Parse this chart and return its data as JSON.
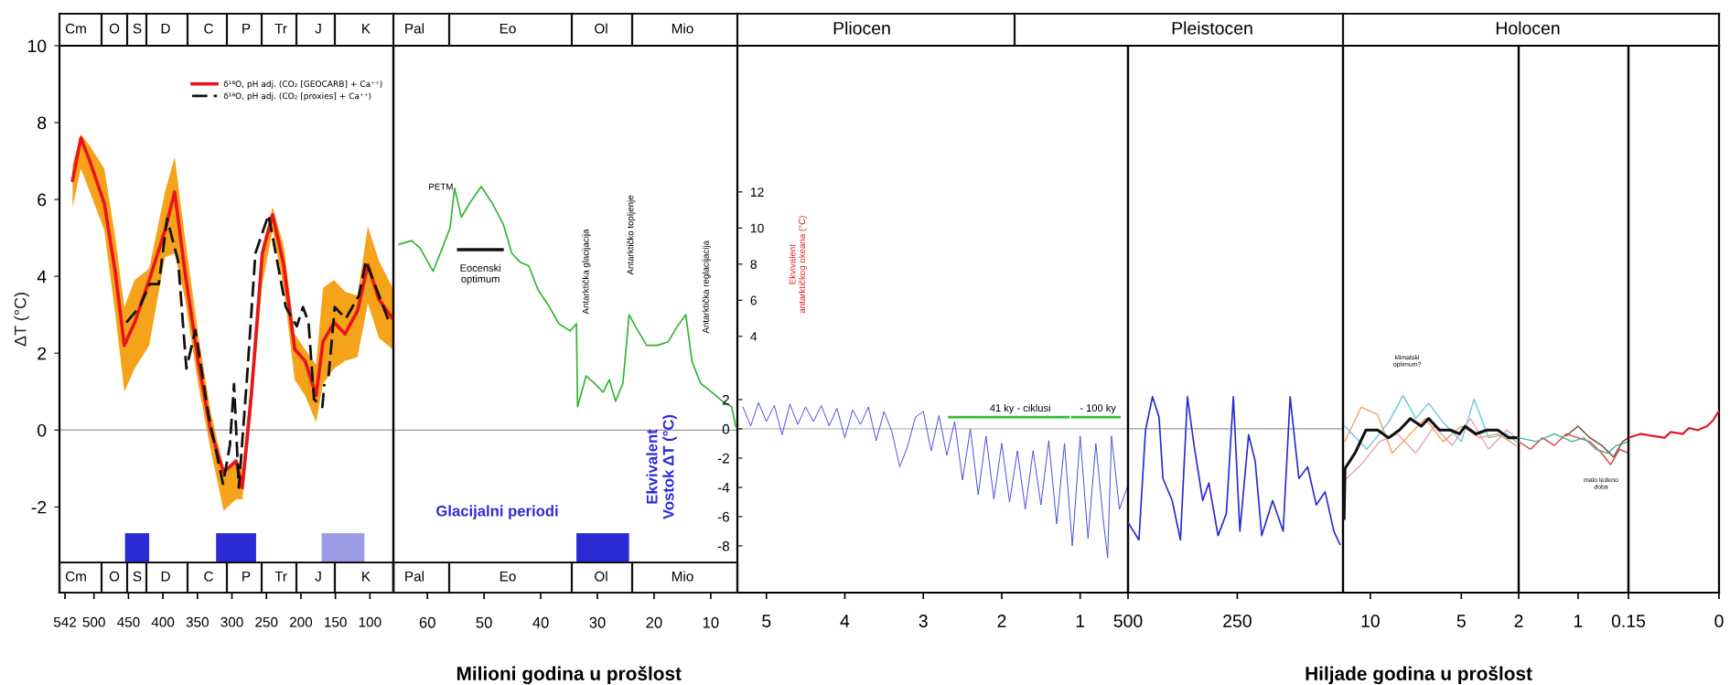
{
  "chart_data": [
    {
      "type": "line",
      "ylabel": "ΔT (°C)",
      "xlim": [
        550,
        66
      ],
      "xticks": [
        542,
        500,
        450,
        400,
        350,
        300,
        250,
        200,
        150,
        100
      ],
      "ylim": [
        -4.23,
        10
      ],
      "yticks": [
        -2,
        0,
        2,
        4,
        6,
        8,
        10
      ],
      "legend": "top right",
      "series": [
        {
          "name": "δ¹⁸O, pH adj. (CO₂ [GEOCARB] + Ca⁺⁺)",
          "color": "#e8151b",
          "x": [
            531,
            519,
            506,
            485,
            469,
            456,
            441,
            420,
            397,
            383,
            368,
            349,
            331,
            312,
            294,
            285,
            272,
            256,
            241,
            225,
            209,
            194,
            178,
            168,
            152,
            136,
            118,
            103,
            87,
            67
          ],
          "values": [
            6.5,
            7.6,
            7.0,
            5.9,
            4.1,
            2.2,
            2.8,
            3.9,
            5.2,
            6.2,
            4.1,
            1.8,
            0.0,
            -1.1,
            -0.8,
            -1.5,
            0.9,
            4.6,
            5.6,
            4.3,
            2.1,
            1.8,
            0.9,
            2.3,
            2.8,
            2.5,
            3.1,
            4.3,
            3.4,
            2.9
          ],
          "lower": [
            5.8,
            6.8,
            6.2,
            5.2,
            3.0,
            1.0,
            1.6,
            2.2,
            4.5,
            4.6,
            3.4,
            1.2,
            -0.5,
            -2.1,
            -1.8,
            -1.8,
            0.4,
            3.8,
            5.2,
            3.7,
            1.3,
            0.9,
            0.2,
            1.2,
            1.6,
            1.8,
            1.9,
            3.3,
            2.4,
            2.1
          ],
          "upper": [
            6.9,
            7.7,
            7.4,
            6.8,
            5.0,
            3.2,
            3.9,
            4.2,
            6.2,
            7.1,
            5.0,
            2.5,
            0.5,
            -1.0,
            -0.8,
            -1.0,
            1.3,
            4.8,
            5.8,
            4.8,
            2.5,
            2.1,
            1.7,
            3.7,
            3.9,
            3.6,
            3.5,
            5.3,
            4.4,
            3.7
          ]
        },
        {
          "name": "δ¹⁸O, pH adj. (CO₂ [proxies] + Ca⁺⁺)",
          "color": "#111111",
          "line_style": "dashed",
          "x": [
            453,
            434,
            419,
            406,
            394,
            378,
            366,
            353,
            334,
            313,
            303,
            297,
            290,
            278,
            266,
            247,
            222,
            206,
            197,
            189,
            181,
            169,
            166,
            163,
            160,
            151,
            135,
            116,
            106,
            91,
            72
          ],
          "values": [
            2.8,
            3.2,
            3.8,
            3.8,
            5.5,
            4.4,
            1.6,
            2.6,
            0.4,
            -1.4,
            -0.4,
            1.2,
            -1.5,
            1.4,
            4.6,
            5.6,
            3.2,
            2.7,
            3.2,
            2.8,
            0.8,
            0.6,
            1.2,
            null,
            1.4,
            3.2,
            2.9,
            3.5,
            4.4,
            3.7,
            2.8
          ]
        }
      ],
      "annotations": [
        "Cm",
        "O",
        "S",
        "D",
        "C",
        "P",
        "Tr",
        "J",
        "K"
      ],
      "bands": [
        {
          "axis": "x",
          "from": 455,
          "to": 420,
          "color": "#2b2bd6"
        },
        {
          "axis": "x",
          "from": 323,
          "to": 265,
          "color": "#2b2bd6"
        },
        {
          "axis": "x",
          "from": 170,
          "to": 108,
          "color": "#9c9ce6"
        }
      ],
      "ref_lines": [
        {
          "axis": "y",
          "value": 0,
          "color": "#999999"
        }
      ]
    },
    {
      "type": "line",
      "xlabel": "Milioni godina u prošlost",
      "ylabel": "Ekvivalent\nantarktičkog okeana (°C)",
      "xlim": [
        66,
        5.3
      ],
      "xticks": [
        60,
        50,
        40,
        30,
        20,
        10
      ],
      "ylim": [
        -10.2,
        20.1
      ],
      "yticks": [
        4,
        6,
        8,
        10,
        12
      ],
      "series": [
        {
          "color": "#2fb52f",
          "x": [
            65.0,
            62.8,
            61.3,
            59.0,
            57.1,
            56.0,
            55.2,
            54.0,
            52.5,
            50.5,
            48.6,
            46.6,
            45.1,
            43.6,
            42.1,
            40.5,
            38.6,
            36.8,
            34.8,
            33.7,
            33.5,
            32.0,
            30.5,
            29.0,
            27.9,
            26.8,
            25.5,
            24.4,
            23.2,
            21.3,
            19.4,
            17.5,
            16.0,
            14.4,
            13.3,
            11.8,
            9.8,
            7.9,
            6.3,
            5.6
          ],
          "values": [
            9.1,
            9.3,
            8.9,
            7.6,
            9.1,
            10.0,
            12.2,
            10.6,
            11.4,
            12.3,
            11.4,
            10.2,
            8.6,
            8.1,
            7.9,
            6.6,
            5.7,
            4.7,
            4.3,
            4.7,
            0.1,
            1.8,
            1.4,
            0.9,
            1.6,
            0.4,
            1.4,
            5.2,
            4.5,
            3.5,
            3.5,
            3.7,
            4.5,
            5.2,
            2.6,
            1.4,
            0.9,
            0.4,
            0.1,
            -1.0
          ]
        },
        {
          "color": "#111111",
          "x": [
            54.5,
            46.8
          ],
          "values": [
            8.8,
            8.8
          ]
        }
      ],
      "annotations": [
        "Pal",
        "Eo",
        "Ol",
        "Mio",
        "PETM",
        "Eocenski\noptimum",
        "Antarktička glacijacija",
        "Antarktičko topljenje",
        "Antarktička reglacijacija"
      ],
      "bands": [
        {
          "axis": "x",
          "from": 33.7,
          "to": 24.4,
          "label": "Glacijalni periodi",
          "color": "#2b2bd6"
        }
      ],
      "ref_lines": [
        {
          "axis": "y",
          "value": -1.2,
          "color": "#999999"
        }
      ]
    },
    {
      "type": "line",
      "ylabel": "Ekvivalent\nVostok ΔT (°C)",
      "xlim": [
        5.37,
        0.39
      ],
      "xticks": [
        5,
        4,
        3,
        2,
        1
      ],
      "ylim": [
        -11.2,
        26.2
      ],
      "yticks": [
        2,
        0,
        -2,
        -4,
        -6,
        -8
      ],
      "series": [
        {
          "color": "#4848e0",
          "x": [
            5.3,
            5.2,
            5.1,
            5.0,
            4.9,
            4.8,
            4.7,
            4.6,
            4.5,
            4.4,
            4.3,
            4.2,
            4.1,
            4.0,
            3.9,
            3.8,
            3.7,
            3.6,
            3.5,
            3.4,
            3.3,
            3.2,
            3.1,
            3.0,
            2.9,
            2.8,
            2.7,
            2.6,
            2.5,
            2.4,
            2.3,
            2.2,
            2.1,
            2.0,
            1.9,
            1.8,
            1.7,
            1.6,
            1.5,
            1.4,
            1.3,
            1.2,
            1.1,
            1.0,
            0.9,
            0.8,
            0.7,
            0.65,
            0.6,
            0.5,
            0.4
          ],
          "values": [
            1.5,
            0.2,
            1.8,
            0.5,
            1.6,
            -0.4,
            1.7,
            0.3,
            1.5,
            0.5,
            1.6,
            0.2,
            1.4,
            -0.6,
            1.3,
            0.3,
            1.5,
            -0.8,
            1.2,
            -0.2,
            -2.6,
            -1.2,
            0.8,
            1.2,
            -1.5,
            0.9,
            -1.8,
            0.5,
            -3.5,
            0.0,
            -4.5,
            -0.5,
            -4.8,
            -1.0,
            -5.0,
            -1.5,
            -5.5,
            -1.5,
            -5.2,
            -0.8,
            -6.5,
            -1.0,
            -8.0,
            -0.5,
            -7.5,
            -1.0,
            -6.5,
            -8.8,
            -0.5,
            -5.5,
            -4.0
          ]
        },
        {
          "color": "#2fc02f",
          "x": [
            2.67,
            1.15,
            1.12,
            1.1,
            0.5
          ],
          "values": [
            0.8,
            0.8,
            null,
            0.8,
            0.8
          ]
        }
      ],
      "annotations": [
        "Pliocen",
        "41 ky - ciklusi",
        "- 100 ky"
      ],
      "ref_lines": [
        {
          "axis": "y",
          "value": 0,
          "color": "#bbbbbb"
        }
      ]
    },
    {
      "type": "line",
      "xlim": [
        500,
        8
      ],
      "xticks": [
        500,
        250
      ],
      "ylim": [
        -11.2,
        26.2
      ],
      "tick_labels": "x",
      "series": [
        {
          "color": "#2a2ad0",
          "x": [
            500,
            475,
            460,
            444,
            429,
            420,
            399,
            380,
            364,
            349,
            329,
            315,
            294,
            275,
            259,
            244,
            224,
            209,
            194,
            169,
            145,
            129,
            109,
            89,
            69,
            49,
            29,
            15
          ],
          "values": [
            -6.4,
            -7.6,
            -0.1,
            2.2,
            0.8,
            -3.4,
            -4.9,
            -7.6,
            2.2,
            -1.1,
            -4.9,
            -3.7,
            -7.3,
            -5.8,
            2.2,
            -7.0,
            -0.4,
            -2.2,
            -7.3,
            -4.9,
            -7.0,
            2.2,
            -3.4,
            -2.6,
            -5.2,
            -4.3,
            -7.0,
            -7.9
          ]
        }
      ],
      "annotations": [
        "Pleistocen"
      ],
      "ref_lines": [
        {
          "axis": "y",
          "value": 0,
          "color": "#999999"
        }
      ]
    },
    {
      "type": "line",
      "xlabel": "Hiljade godina u prošlost",
      "xlim": [
        11.5,
        1.85
      ],
      "xticks": [
        10,
        5
      ],
      "ylim": [
        -4.23,
        10
      ],
      "tick_labels": "x",
      "series": [
        {
          "color": "#f0a060",
          "x": [
            11.4,
            10.5,
            9.6,
            8.8,
            8.0,
            7.0,
            6.0,
            5.0,
            4.0,
            3.0,
            2.0
          ],
          "values": [
            -0.3,
            0.6,
            0.4,
            -0.6,
            -0.2,
            0.3,
            -0.3,
            0.1,
            -0.2,
            -0.1,
            -0.4
          ]
        },
        {
          "color": "#6cc8d8",
          "x": [
            11.4,
            10.2,
            9.0,
            8.2,
            7.5,
            6.8,
            6.0,
            5.0,
            4.3,
            3.5,
            2.5,
            2.0
          ],
          "values": [
            0.1,
            -0.5,
            0.2,
            0.9,
            0.3,
            0.7,
            0.2,
            -0.3,
            0.8,
            -0.2,
            -0.1,
            -0.3
          ]
        },
        {
          "color": "#e8a0b0",
          "x": [
            11.4,
            10.5,
            9.5,
            8.5,
            7.5,
            6.5,
            5.5,
            4.5,
            3.5,
            2.5,
            2.0
          ],
          "values": [
            -1.3,
            -0.9,
            -0.3,
            -0.1,
            -0.6,
            0.1,
            -0.4,
            0.3,
            -0.5,
            0.0,
            -0.2
          ]
        },
        {
          "color": "#111111",
          "x": [
            11.44,
            11.39,
            10.84,
            10.24,
            9.6,
            9.0,
            8.4,
            7.8,
            7.2,
            6.8,
            6.2,
            5.6,
            5.1,
            4.8,
            4.2,
            3.6,
            3.0,
            2.4,
            2.0
          ],
          "values": [
            -2.3,
            -1.0,
            -0.6,
            0.0,
            0.0,
            -0.2,
            0.0,
            0.3,
            0.1,
            0.3,
            0.0,
            0.0,
            -0.1,
            0.1,
            -0.1,
            0.0,
            0.0,
            -0.2,
            -0.2
          ]
        }
      ],
      "annotations": [
        "klimatski\noptimum?"
      ]
    },
    {
      "type": "line",
      "xlim": [
        2,
        0.15
      ],
      "xticks": [
        2,
        1
      ],
      "ylim": [
        -4.23,
        10
      ],
      "tick_labels": "x",
      "series": [
        {
          "color": "#e0403a",
          "x": [
            2.0,
            1.8,
            1.6,
            1.4,
            1.2,
            1.0,
            0.8,
            0.6,
            0.45,
            0.3,
            0.15
          ],
          "values": [
            -0.3,
            -0.5,
            -0.2,
            -0.4,
            -0.1,
            -0.2,
            -0.3,
            -0.6,
            -0.9,
            -0.5,
            -0.6
          ]
        },
        {
          "color": "#40b0a0",
          "x": [
            2.0,
            1.7,
            1.4,
            1.1,
            0.9,
            0.7,
            0.5,
            0.35,
            0.15
          ],
          "values": [
            -0.2,
            -0.3,
            -0.1,
            -0.3,
            -0.2,
            -0.5,
            -0.6,
            -0.4,
            -0.3
          ]
        },
        {
          "color": "#6a4a3a",
          "x": [
            1.2,
            1.0,
            0.8,
            0.6,
            0.4,
            0.25,
            0.15
          ],
          "values": [
            -0.15,
            0.1,
            -0.2,
            -0.4,
            -0.7,
            -0.3,
            -0.2
          ]
        }
      ],
      "annotations": [
        "Holocen",
        "malo ledeno\ndoba"
      ]
    },
    {
      "type": "line",
      "xlim": [
        0.15,
        0
      ],
      "xticks": [
        0.15,
        0
      ],
      "ylim": [
        -4.23,
        10
      ],
      "tick_labels": "x",
      "series": [
        {
          "color": "#e01a2a",
          "x": [
            0.15,
            0.13,
            0.11,
            0.09,
            0.08,
            0.06,
            0.05,
            0.035,
            0.02,
            0.01,
            0.0
          ],
          "values": [
            -0.2,
            -0.1,
            -0.15,
            -0.2,
            -0.05,
            -0.1,
            0.05,
            0.0,
            0.1,
            0.25,
            0.5
          ]
        }
      ]
    }
  ]
}
